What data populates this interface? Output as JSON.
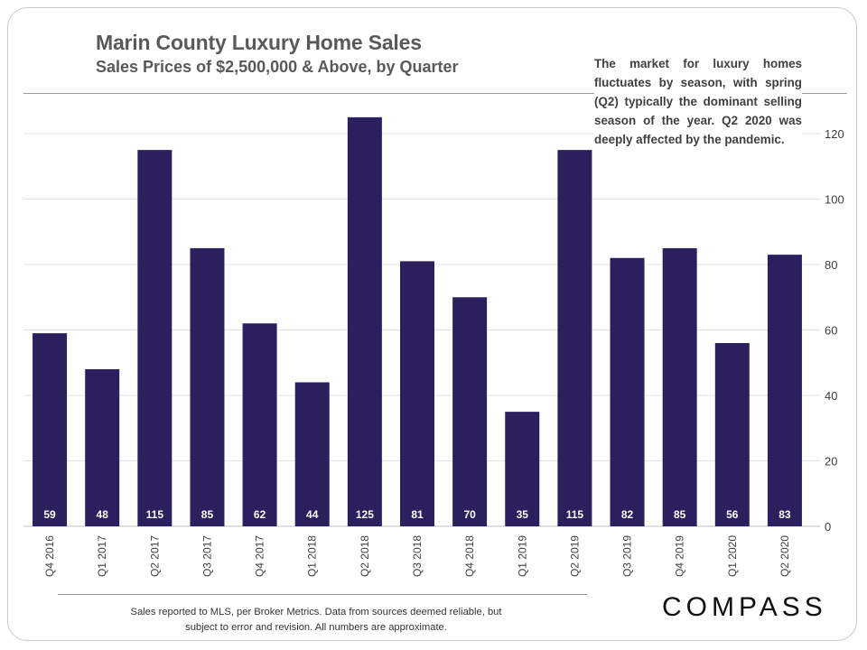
{
  "header": {
    "title": "Marin County Luxury Home Sales",
    "subtitle": "Sales Prices of $2,500,000 & Above, by Quarter"
  },
  "annotation": "The market for luxury homes fluctuates by season, with spring (Q2) typically the dominant selling season of the year. Q2 2020 was deeply affected by the pandemic.",
  "footer": {
    "line1": "Sales reported to MLS, per Broker Metrics. Data from sources deemed reliable, but",
    "line2": "subject to error and revision. All numbers are approximate."
  },
  "logo": "COMPASS",
  "colors": {
    "bar": "#2b1f5e",
    "grid": "#e3e3e3",
    "axis": "#bfbfbf"
  },
  "chart_data": {
    "type": "bar",
    "title": "Marin County Luxury Home Sales",
    "subtitle": "Sales Prices of $2,500,000 & Above, by Quarter",
    "categories": [
      "Q4 2016",
      "Q1 2017",
      "Q2 2017",
      "Q3 2017",
      "Q4 2017",
      "Q1 2018",
      "Q2 2018",
      "Q3 2018",
      "Q4 2018",
      "Q1 2019",
      "Q2 2019",
      "Q3 2019",
      "Q4 2019",
      "Q1 2020",
      "Q2 2020"
    ],
    "values": [
      59,
      48,
      115,
      85,
      62,
      44,
      125,
      81,
      70,
      35,
      115,
      82,
      85,
      56,
      83
    ],
    "data_labels": [
      "59",
      "48",
      "115",
      "85",
      "62",
      "44",
      "125",
      "81",
      "70",
      "35",
      "115",
      "82",
      "85",
      "56",
      "83"
    ],
    "ylim": [
      0,
      130
    ],
    "yticks": [
      0,
      20,
      40,
      60,
      80,
      100,
      120
    ],
    "yaxis_side": "right",
    "grid": true,
    "xlabel": "",
    "ylabel": ""
  }
}
